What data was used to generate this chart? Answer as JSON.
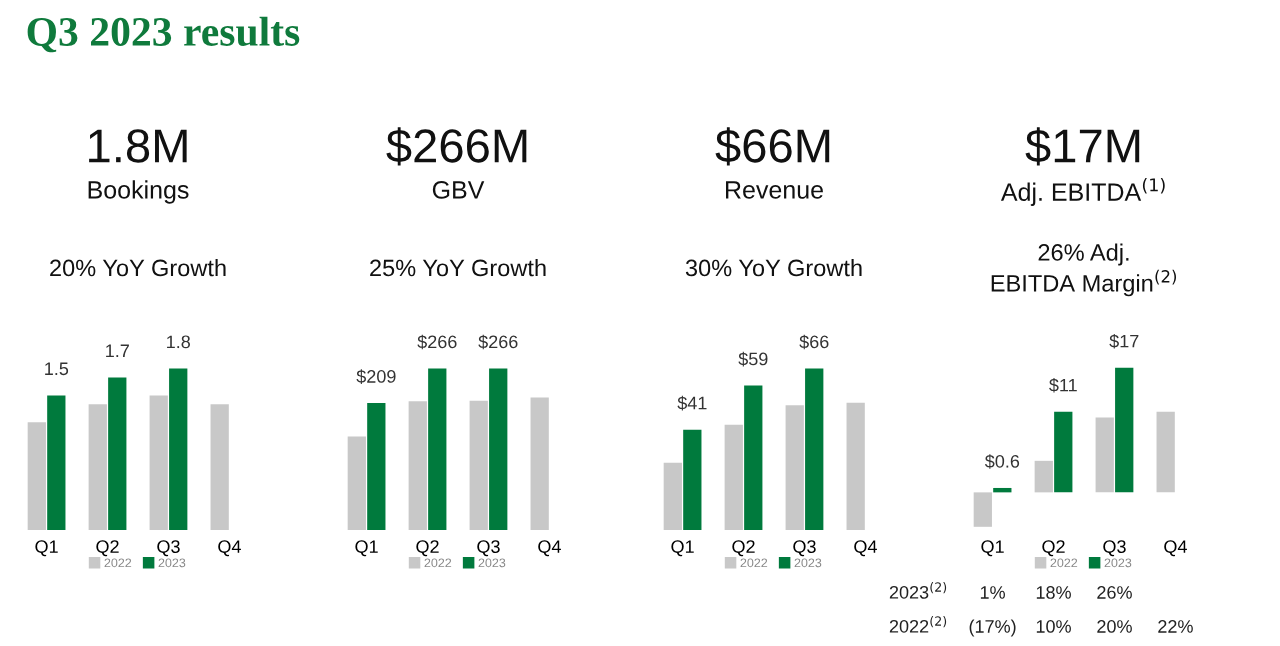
{
  "chart_data": [
    {
      "type": "bar",
      "title": "1.8M",
      "subtitle": "Bookings",
      "annotations": [
        "Q3 2023 results",
        "20% YoY Growth"
      ],
      "categories": [
        "Q1",
        "Q2",
        "Q3",
        "Q4"
      ],
      "tick_labels": "x",
      "legend": "bottom",
      "series": [
        {
          "name": "2022",
          "color": "#c8c8c8",
          "values": [
            1.2,
            1.4,
            1.5,
            1.4
          ]
        },
        {
          "name": "2023",
          "color": "#007a3d",
          "values": [
            1.5,
            1.7,
            1.8,
            null
          ],
          "value_labels": [
            "1.5",
            "1.7",
            "1.8",
            null
          ]
        }
      ]
    },
    {
      "type": "bar",
      "title": "$266M",
      "subtitle": "GBV",
      "annotations": [
        "25% YoY Growth"
      ],
      "categories": [
        "Q1",
        "Q2",
        "Q3",
        "Q4"
      ],
      "tick_labels": "x",
      "legend": "bottom",
      "series": [
        {
          "name": "2022",
          "color": "#c8c8c8",
          "values": [
            154,
            212,
            213,
            218
          ]
        },
        {
          "name": "2023",
          "color": "#007a3d",
          "values": [
            209,
            266,
            266,
            null
          ],
          "value_labels": [
            "$209",
            "$266",
            "$266",
            null
          ]
        }
      ]
    },
    {
      "type": "bar",
      "title": "$66M",
      "subtitle": "Revenue",
      "annotations": [
        "30% YoY Growth"
      ],
      "categories": [
        "Q1",
        "Q2",
        "Q3",
        "Q4"
      ],
      "tick_labels": "x",
      "legend": "bottom",
      "series": [
        {
          "name": "2022",
          "color": "#c8c8c8",
          "values": [
            27.5,
            43,
            51,
            52
          ]
        },
        {
          "name": "2023",
          "color": "#007a3d",
          "values": [
            41,
            59,
            66,
            null
          ],
          "value_labels": [
            "$41",
            "$59",
            "$66",
            null
          ]
        }
      ]
    },
    {
      "type": "bar",
      "title": "$17M",
      "subtitle": "Adj. EBITDA$^{(1)}$",
      "annotations": [
        "26% Adj.\nEBITDA Margin$^{(2)}$",
        "2023$^{(2)}$\t1%\t18%\t26%",
        "2022$^{(2)}$\t(17%)\t10%\t20%\t22%"
      ],
      "categories": [
        "Q1",
        "Q2",
        "Q3",
        "Q4"
      ],
      "tick_labels": "x",
      "legend": "bottom",
      "series": [
        {
          "name": "2022",
          "color": "#c8c8c8",
          "values": [
            -4.7,
            4.3,
            10.2,
            11
          ]
        },
        {
          "name": "2023",
          "color": "#007a3d",
          "values": [
            0.6,
            11,
            17,
            null
          ],
          "value_labels": [
            "$0.6",
            "$11",
            "$17",
            null
          ]
        }
      ]
    }
  ]
}
